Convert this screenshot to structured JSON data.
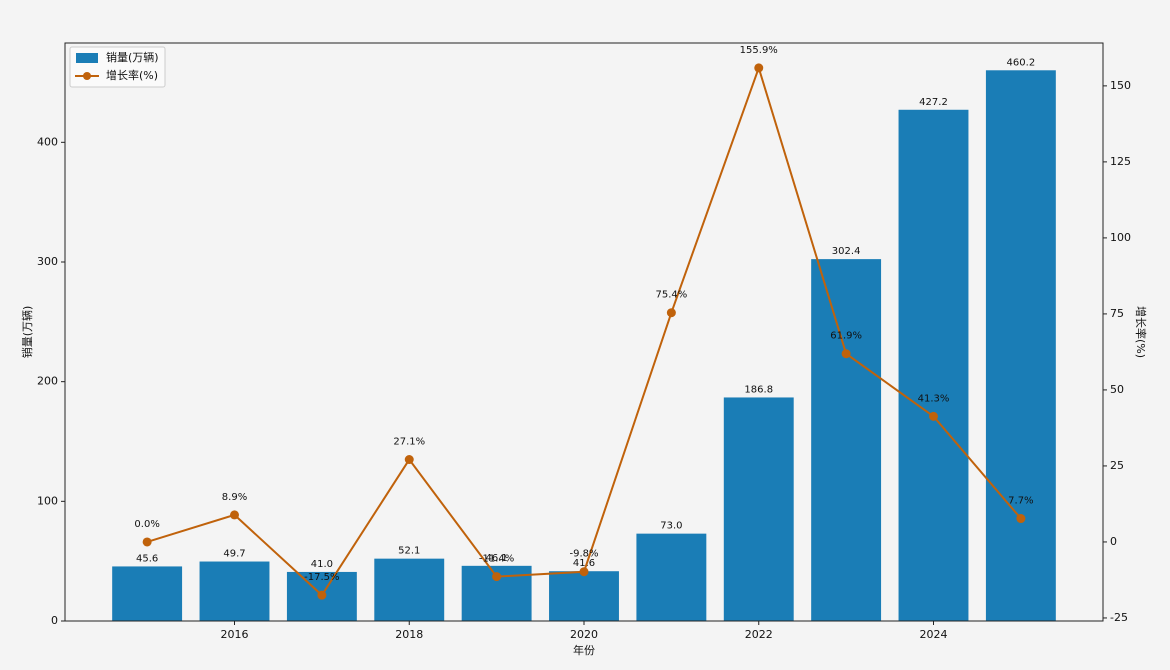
{
  "chart_data": {
    "type": "bar",
    "x": [
      2015,
      2016,
      2017,
      2018,
      2019,
      2020,
      2021,
      2022,
      2023,
      2024,
      2025
    ],
    "xlabel": "年份",
    "ylabel": "销量(万辆)",
    "y2label": "增长率(%)",
    "xlim": [
      2014.06,
      2025.94
    ],
    "xticks": [
      2016,
      2018,
      2020,
      2022,
      2024
    ],
    "ylim": [
      0,
      483
    ],
    "yticks": [
      0,
      100,
      200,
      300,
      400
    ],
    "y2lim": [
      -26,
      164.1
    ],
    "y2ticks": [
      -25,
      0,
      25,
      50,
      75,
      100,
      125,
      150
    ],
    "legend": "upper left",
    "series": [
      {
        "name": "销量(万辆)",
        "type": "bar",
        "color": "#1a7db6",
        "values": [
          45.6,
          49.7,
          41.0,
          52.1,
          46.1,
          41.6,
          73.0,
          186.8,
          302.4,
          427.2,
          460.2
        ],
        "value_labels": [
          "45.6",
          "49.7",
          "41.0",
          "52.1",
          "46.1",
          "41.6",
          "73.0",
          "186.8",
          "302.4",
          "427.2",
          "460.2"
        ]
      },
      {
        "name": "增长率(%)",
        "type": "line",
        "axis": "y2",
        "color": "#c0620b",
        "values": [
          0.0,
          8.9,
          -17.5,
          27.1,
          -11.4,
          -9.8,
          75.4,
          155.9,
          61.9,
          41.3,
          7.7
        ],
        "value_labels": [
          "0.0%",
          "8.9%",
          "-17.5%",
          "27.1%",
          "-11.4%",
          "-9.8%",
          "75.4%",
          "155.9%",
          "61.9%",
          "41.3%",
          "7.7%"
        ]
      }
    ]
  }
}
